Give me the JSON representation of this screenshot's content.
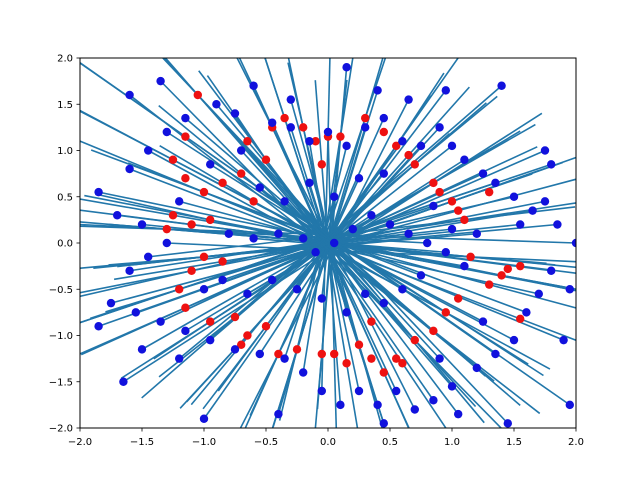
{
  "chart_data": {
    "type": "scatter",
    "title": "",
    "xlabel": "",
    "ylabel": "",
    "xlim": [
      -2.0,
      2.0
    ],
    "ylim": [
      -2.0,
      2.0
    ],
    "grid": false,
    "legend": "none",
    "xticks": [
      -2.0,
      -1.5,
      -1.0,
      -0.5,
      0.0,
      0.5,
      1.0,
      1.5,
      2.0
    ],
    "yticks": [
      -2.0,
      -1.5,
      -1.0,
      -0.5,
      0.0,
      0.5,
      1.0,
      1.5,
      2.0
    ],
    "xtick_labels": [
      "−2.0",
      "−1.5",
      "−1.0",
      "−0.5",
      "0.0",
      "0.5",
      "1.0",
      "1.5",
      "2.0"
    ],
    "ytick_labels": [
      "−2.0",
      "−1.5",
      "−1.0",
      "−0.5",
      "0.0",
      "0.5",
      "1.0",
      "1.5",
      "2.0"
    ],
    "colors": {
      "red": "#ee1111",
      "blue": "#1111dd",
      "line": "#2277aa",
      "axes": "#000000"
    },
    "series": [
      {
        "marker": "red",
        "points": [
          [
            -1.05,
            1.6
          ],
          [
            -0.65,
            1.1
          ],
          [
            -0.45,
            1.25
          ],
          [
            -1.15,
            1.15
          ],
          [
            -1.25,
            0.3
          ],
          [
            -1.3,
            0.15
          ],
          [
            -1.1,
            0.2
          ],
          [
            -0.95,
            0.25
          ],
          [
            -1.0,
            -0.15
          ],
          [
            -1.1,
            -0.3
          ],
          [
            -1.2,
            -0.5
          ],
          [
            -0.85,
            -0.2
          ],
          [
            -0.95,
            -0.85
          ],
          [
            -0.75,
            -0.8
          ],
          [
            -0.5,
            -0.9
          ],
          [
            -0.65,
            -1.0
          ],
          [
            -0.7,
            -1.1
          ],
          [
            -0.25,
            -1.15
          ],
          [
            -0.05,
            -1.2
          ],
          [
            0.05,
            -1.2
          ],
          [
            0.25,
            -1.1
          ],
          [
            0.35,
            -1.25
          ],
          [
            0.45,
            -1.4
          ],
          [
            0.55,
            -1.25
          ],
          [
            0.7,
            -1.05
          ],
          [
            0.85,
            -0.95
          ],
          [
            0.95,
            -0.75
          ],
          [
            1.05,
            -0.6
          ],
          [
            1.3,
            -0.45
          ],
          [
            1.4,
            -0.35
          ],
          [
            1.45,
            -0.28
          ],
          [
            1.55,
            -0.25
          ],
          [
            1.55,
            -0.82
          ],
          [
            1.05,
            0.35
          ],
          [
            1.1,
            0.25
          ],
          [
            1.0,
            0.45
          ],
          [
            0.9,
            0.55
          ],
          [
            0.85,
            0.65
          ],
          [
            0.7,
            0.85
          ],
          [
            0.65,
            0.95
          ],
          [
            0.55,
            1.05
          ],
          [
            0.45,
            1.2
          ],
          [
            0.3,
            1.35
          ],
          [
            0.1,
            1.15
          ],
          [
            0.0,
            1.15
          ],
          [
            -0.1,
            1.1
          ],
          [
            -0.2,
            1.25
          ],
          [
            -0.35,
            1.35
          ],
          [
            -0.5,
            0.9
          ],
          [
            -0.7,
            0.75
          ],
          [
            -0.85,
            0.65
          ],
          [
            -1.0,
            0.55
          ],
          [
            -1.15,
            0.7
          ],
          [
            -1.25,
            0.9
          ],
          [
            -0.4,
            -1.2
          ],
          [
            0.15,
            -1.3
          ],
          [
            0.6,
            -1.3
          ],
          [
            1.15,
            -0.15
          ],
          [
            1.3,
            0.55
          ],
          [
            -1.15,
            -0.7
          ],
          [
            -0.6,
            0.45
          ],
          [
            0.35,
            -0.85
          ],
          [
            -0.05,
            0.85
          ]
        ]
      },
      {
        "marker": "blue",
        "points": [
          [
            -1.35,
            1.75
          ],
          [
            -0.6,
            1.7
          ],
          [
            -0.45,
            1.3
          ],
          [
            -0.3,
            1.25
          ],
          [
            -0.15,
            1.1
          ],
          [
            0.0,
            1.2
          ],
          [
            0.15,
            1.05
          ],
          [
            0.3,
            1.25
          ],
          [
            0.45,
            1.35
          ],
          [
            0.6,
            1.1
          ],
          [
            0.75,
            1.05
          ],
          [
            0.9,
            1.25
          ],
          [
            1.0,
            1.05
          ],
          [
            1.1,
            0.9
          ],
          [
            1.25,
            0.75
          ],
          [
            1.35,
            0.65
          ],
          [
            1.5,
            0.5
          ],
          [
            1.65,
            0.35
          ],
          [
            1.75,
            0.45
          ],
          [
            1.85,
            0.2
          ],
          [
            2.0,
            0.0
          ],
          [
            1.8,
            -0.3
          ],
          [
            1.7,
            -0.55
          ],
          [
            1.6,
            -0.75
          ],
          [
            1.5,
            -1.05
          ],
          [
            1.35,
            -1.2
          ],
          [
            1.2,
            -1.35
          ],
          [
            1.0,
            -1.55
          ],
          [
            0.85,
            -1.7
          ],
          [
            0.7,
            -1.8
          ],
          [
            0.55,
            -1.6
          ],
          [
            0.4,
            -1.75
          ],
          [
            0.25,
            -1.6
          ],
          [
            0.1,
            -1.75
          ],
          [
            -0.05,
            -1.6
          ],
          [
            -0.2,
            -1.4
          ],
          [
            -0.35,
            -1.25
          ],
          [
            -0.55,
            -1.2
          ],
          [
            -0.75,
            -1.15
          ],
          [
            -0.95,
            -1.05
          ],
          [
            -1.15,
            -0.95
          ],
          [
            -1.35,
            -0.85
          ],
          [
            -1.55,
            -0.75
          ],
          [
            -1.75,
            -0.65
          ],
          [
            -1.85,
            -0.9
          ],
          [
            -1.6,
            -0.3
          ],
          [
            -1.45,
            -0.15
          ],
          [
            -1.3,
            0.0
          ],
          [
            -1.5,
            0.2
          ],
          [
            -1.7,
            0.3
          ],
          [
            -1.85,
            0.55
          ],
          [
            -1.6,
            0.8
          ],
          [
            -1.45,
            1.0
          ],
          [
            -1.3,
            1.2
          ],
          [
            -1.15,
            1.35
          ],
          [
            -0.9,
            1.5
          ],
          [
            -0.75,
            1.4
          ],
          [
            -0.3,
            1.55
          ],
          [
            0.15,
            1.9
          ],
          [
            0.4,
            1.65
          ],
          [
            0.65,
            1.55
          ],
          [
            0.95,
            1.65
          ],
          [
            1.4,
            1.7
          ],
          [
            1.75,
            1.0
          ],
          [
            1.95,
            -0.5
          ],
          [
            1.9,
            -1.05
          ],
          [
            1.95,
            -1.75
          ],
          [
            1.45,
            -1.95
          ],
          [
            1.05,
            -1.85
          ],
          [
            0.45,
            -1.95
          ],
          [
            -0.4,
            -1.85
          ],
          [
            -1.0,
            -1.9
          ],
          [
            -1.65,
            -1.5
          ],
          [
            -0.8,
            0.1
          ],
          [
            -0.6,
            0.05
          ],
          [
            -0.4,
            0.1
          ],
          [
            -0.2,
            0.05
          ],
          [
            -0.1,
            -0.1
          ],
          [
            0.05,
            0.0
          ],
          [
            0.2,
            0.15
          ],
          [
            0.35,
            0.3
          ],
          [
            0.5,
            0.2
          ],
          [
            0.65,
            0.1
          ],
          [
            0.8,
            0.0
          ],
          [
            0.95,
            -0.1
          ],
          [
            1.1,
            -0.25
          ],
          [
            0.75,
            -0.35
          ],
          [
            0.6,
            -0.5
          ],
          [
            0.45,
            -0.65
          ],
          [
            0.3,
            -0.55
          ],
          [
            0.15,
            -0.75
          ],
          [
            -0.05,
            -0.6
          ],
          [
            -0.25,
            -0.5
          ],
          [
            -0.45,
            -0.4
          ],
          [
            -0.65,
            -0.55
          ],
          [
            -0.85,
            -0.4
          ],
          [
            -1.0,
            -0.5
          ],
          [
            -0.55,
            0.6
          ],
          [
            -0.35,
            0.45
          ],
          [
            -0.15,
            0.65
          ],
          [
            0.05,
            0.5
          ],
          [
            0.25,
            0.7
          ],
          [
            0.45,
            0.75
          ],
          [
            0.85,
            0.4
          ],
          [
            1.0,
            0.15
          ],
          [
            1.2,
            0.1
          ],
          [
            -1.2,
            0.45
          ],
          [
            -0.95,
            0.85
          ],
          [
            -0.7,
            1.0
          ],
          [
            -1.6,
            1.6
          ],
          [
            1.8,
            0.85
          ],
          [
            1.55,
            0.2
          ],
          [
            -1.5,
            -1.15
          ],
          [
            -1.2,
            -1.25
          ],
          [
            0.9,
            -1.25
          ],
          [
            1.25,
            -0.85
          ]
        ]
      }
    ]
  }
}
